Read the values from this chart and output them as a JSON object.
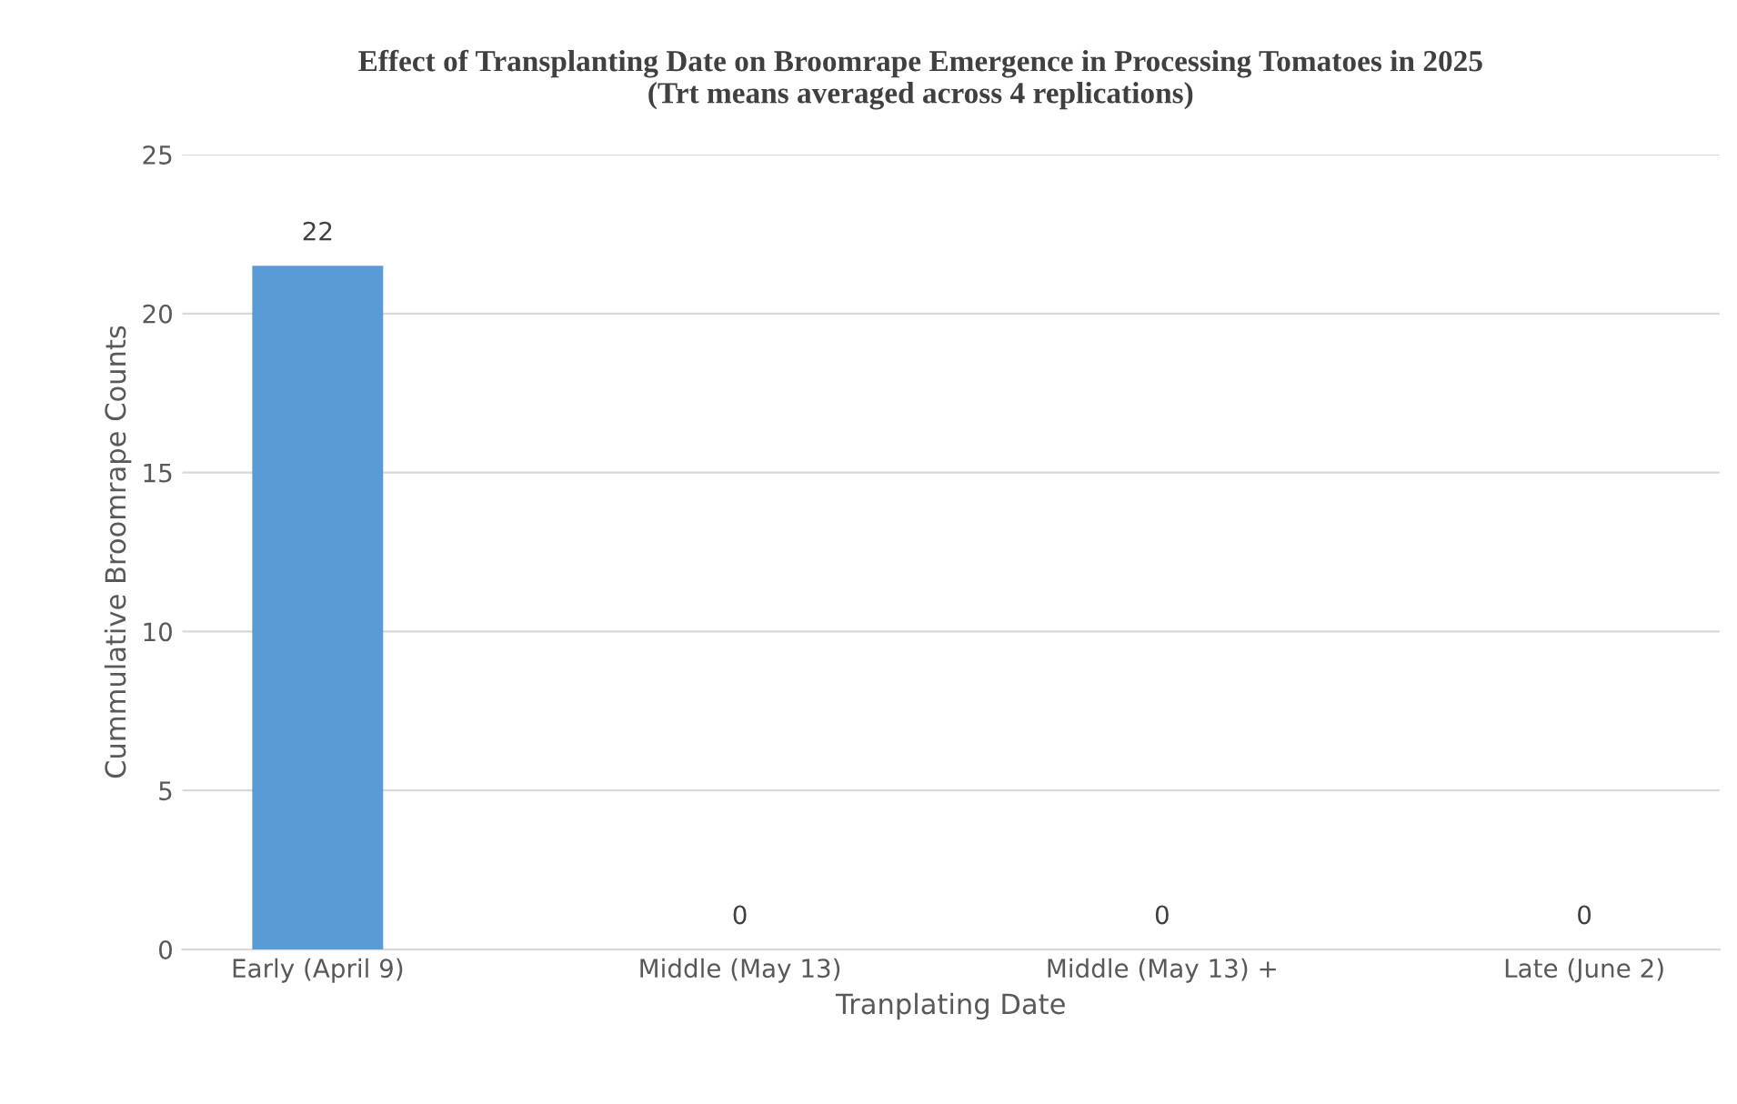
{
  "chart_data": {
    "type": "bar",
    "title": "Effect of Transplanting Date on Broomrape Emergence in Processing Tomatoes in 2025\n(Trt means averaged across 4 replications)",
    "xlabel": "Tranplating Date",
    "ylabel": "Cummulative Broomrape Counts",
    "categories": [
      "Early (April 9)",
      "Middle (May 13)",
      "Middle (May 13) +",
      "Late (June 2)"
    ],
    "values": [
      21.5,
      0,
      0,
      0
    ],
    "value_labels": [
      "22",
      "0",
      "0",
      "0"
    ],
    "color": "#5b9bd5",
    "ylim": [
      0,
      25
    ],
    "yticks": [
      0,
      5,
      10,
      15,
      20,
      25
    ],
    "grid": "y"
  }
}
